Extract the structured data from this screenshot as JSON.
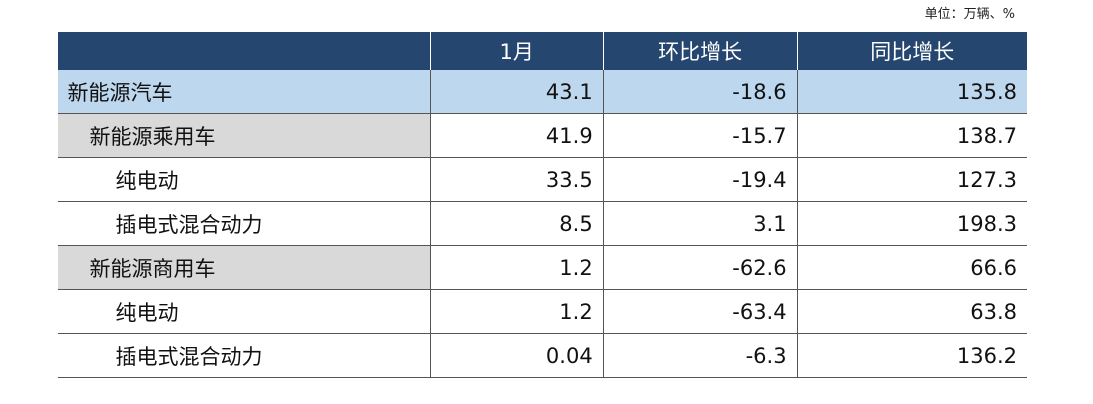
{
  "unit": "单位：万辆、%",
  "table": {
    "header": [
      "1月",
      "环比增长",
      "同比增长"
    ],
    "rows": [
      [
        "新能源汽车",
        "43.1",
        "-18.6",
        "135.8"
      ],
      [
        "新能源乘用车",
        "41.9",
        "-15.7",
        "138.7"
      ],
      [
        "纯电动",
        "33.5",
        "-19.4",
        "127.3"
      ],
      [
        "插电式混合动力",
        "8.5",
        "3.1",
        "198.3"
      ],
      [
        "新能源商用车",
        "1.2",
        "-62.6",
        "66.6"
      ],
      [
        "纯电动",
        "1.2",
        "-63.4",
        "63.8"
      ],
      [
        "插电式混合动力",
        "0.04",
        "-6.3",
        "136.2"
      ]
    ]
  }
}
